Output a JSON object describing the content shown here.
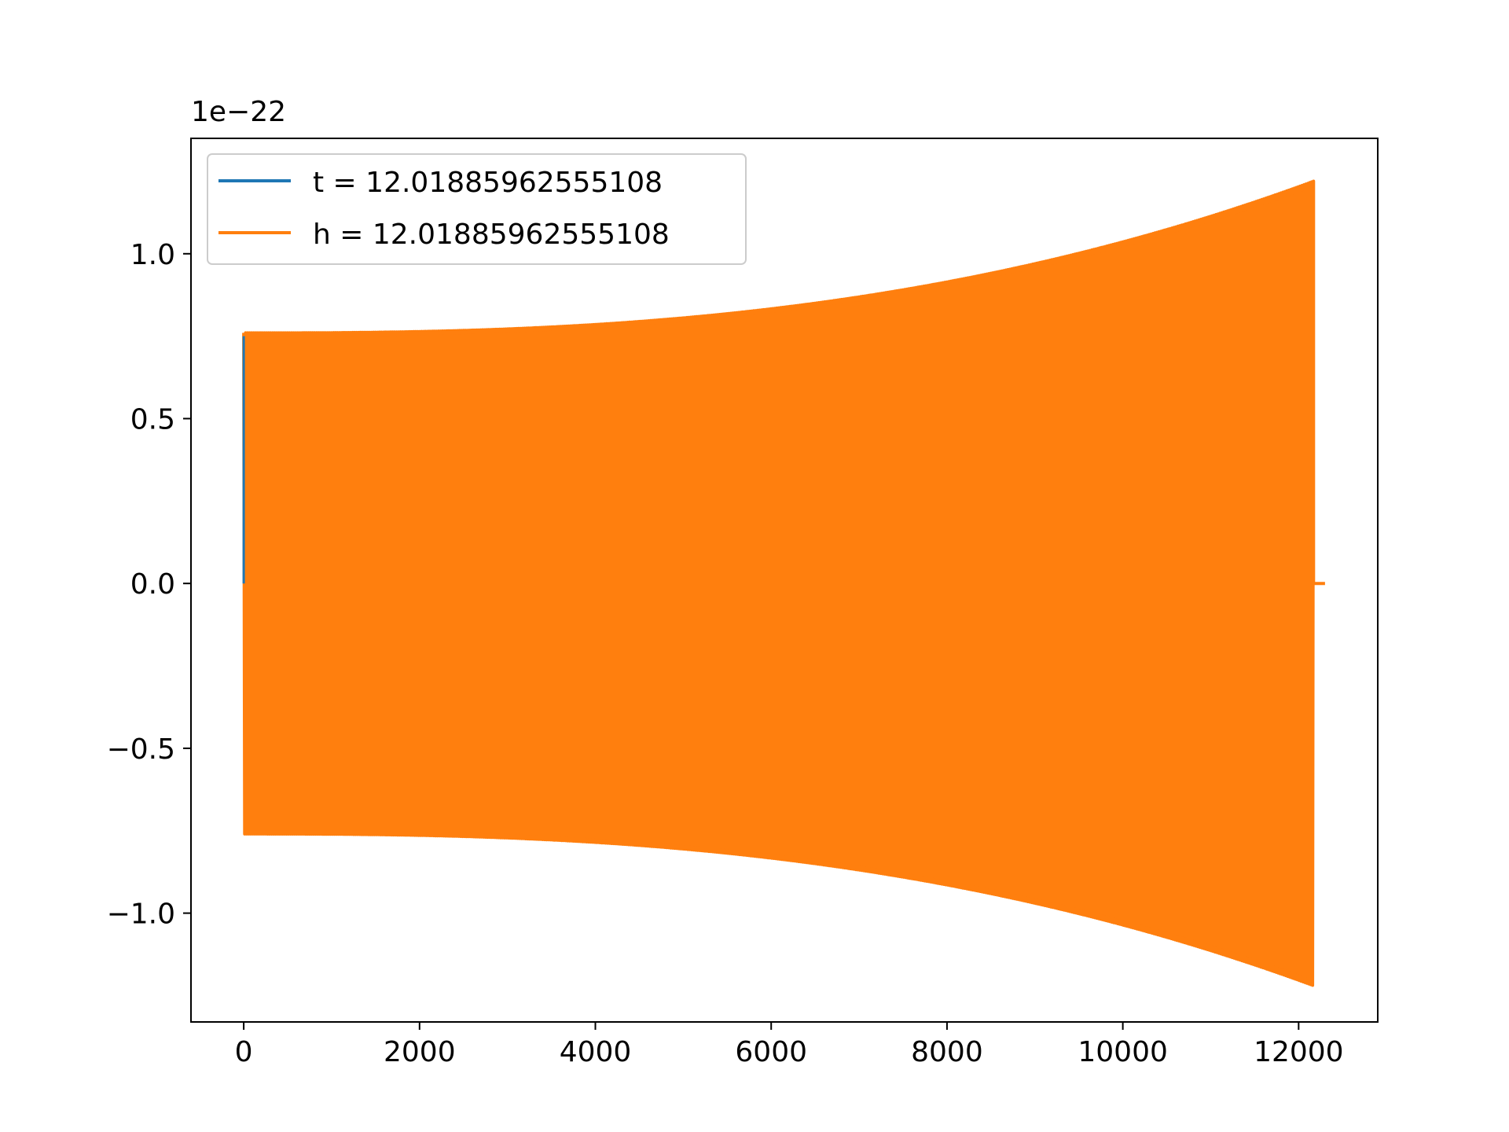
{
  "chart_data": {
    "type": "line",
    "title": "",
    "xlabel": "",
    "ylabel": "",
    "y_offset_label": "1e−22",
    "xlim": [
      -600,
      12900
    ],
    "ylim": [
      -1.33,
      1.35
    ],
    "x_ticks": [
      0,
      2000,
      4000,
      6000,
      8000,
      10000,
      12000
    ],
    "x_tick_labels": [
      "0",
      "2000",
      "4000",
      "6000",
      "8000",
      "10000",
      "12000"
    ],
    "y_ticks": [
      -1.0,
      -0.5,
      0.0,
      0.5,
      1.0
    ],
    "y_tick_labels": [
      "−1.0",
      "−0.5",
      "0.0",
      "0.5",
      "1.0"
    ],
    "grid": false,
    "legend_position": "upper-left",
    "series": [
      {
        "name": "t = 12.01885962555108",
        "color": "#1f77b4",
        "start_x": 0,
        "end_x": 12170,
        "amplitude_start": 0.75,
        "amplitude_end": 1.22
      },
      {
        "name": "h = 12.01885962555108",
        "color": "#ff7f0e",
        "start_x": 0,
        "end_x": 12170,
        "tail_end_x": 12300,
        "amplitude_start": 0.76,
        "amplitude_end": 1.22
      }
    ]
  }
}
